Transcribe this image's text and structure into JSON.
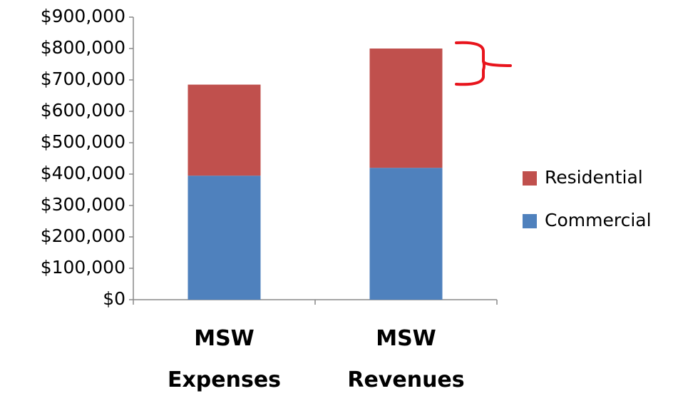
{
  "chart_data": {
    "type": "stacked_bar",
    "categories": [
      "MSW Expenses",
      "MSW Revenues"
    ],
    "series": [
      {
        "name": "Commercial",
        "color": "#4f81bd",
        "values": [
          395000,
          420000
        ]
      },
      {
        "name": "Residential",
        "color": "#c0504d",
        "values": [
          290000,
          380000
        ]
      }
    ],
    "ylim": [
      0,
      900000
    ],
    "yticks": [
      {
        "value": 0,
        "label": "$0"
      },
      {
        "value": 100000,
        "label": "$100,000"
      },
      {
        "value": 200000,
        "label": "$200,000"
      },
      {
        "value": 300000,
        "label": "$300,000"
      },
      {
        "value": 400000,
        "label": "$400,000"
      },
      {
        "value": 500000,
        "label": "$500,000"
      },
      {
        "value": 600000,
        "label": "$600,000"
      },
      {
        "value": 700000,
        "label": "$700,000"
      },
      {
        "value": 800000,
        "label": "$800,000"
      },
      {
        "value": 900000,
        "label": "$900,000"
      }
    ],
    "legend": "right"
  }
}
